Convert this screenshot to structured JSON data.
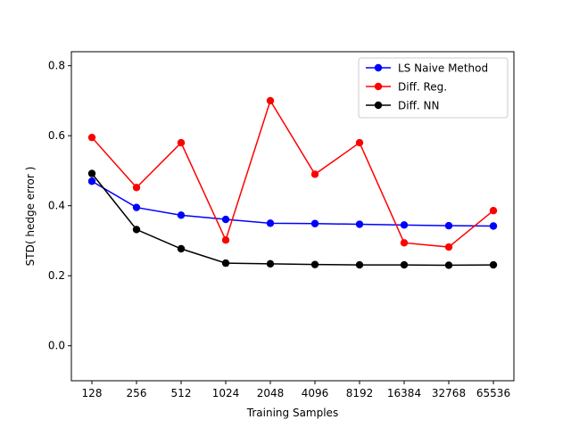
{
  "chart_data": {
    "type": "line",
    "xlabel": "Training Samples",
    "ylabel": "STD( hedge error )",
    "categories": [
      "128",
      "256",
      "512",
      "1024",
      "2048",
      "4096",
      "8192",
      "16384",
      "32768",
      "65536"
    ],
    "ylim": [
      -0.1,
      0.84
    ],
    "yticks": [
      "0.0",
      "0.2",
      "0.4",
      "0.6",
      "0.8"
    ],
    "grid": false,
    "legend_position": "top-right",
    "series": [
      {
        "name": "LS Naive Method",
        "color": "#0000ff",
        "values": [
          0.47,
          0.395,
          0.373,
          0.361,
          0.35,
          0.349,
          0.347,
          0.345,
          0.343,
          0.342
        ]
      },
      {
        "name": "Diff. Reg.",
        "color": "#ff0000",
        "values": [
          0.595,
          0.452,
          0.58,
          0.302,
          0.7,
          0.49,
          0.58,
          0.294,
          0.282,
          0.386
        ]
      },
      {
        "name": "Diff. NN",
        "color": "#000000",
        "values": [
          0.492,
          0.332,
          0.277,
          0.236,
          0.234,
          0.232,
          0.231,
          0.231,
          0.23,
          0.231
        ]
      }
    ]
  }
}
